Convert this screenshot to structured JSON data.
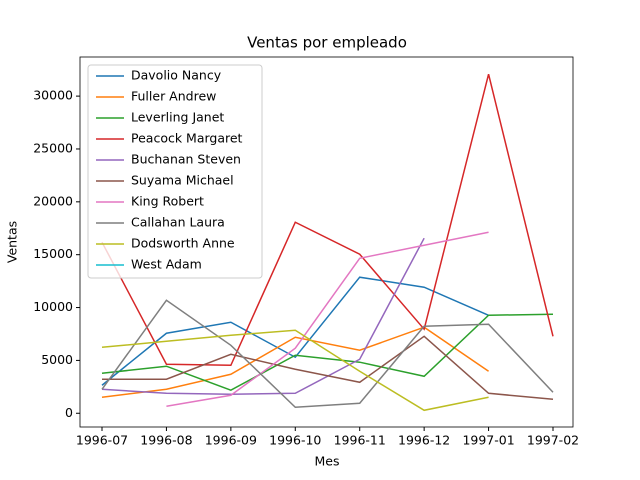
{
  "chart_data": {
    "type": "line",
    "title": "Ventas por empleado",
    "x_label": "Mes",
    "y_label": "Ventas",
    "categories": [
      "1996-07",
      "1996-08",
      "1996-09",
      "1996-10",
      "1996-11",
      "1996-12",
      "1997-01",
      "1997-02"
    ],
    "series": [
      {
        "name": "Davolio Nancy",
        "color": "#1f77b4",
        "values": [
          2650,
          7570,
          8610,
          5300,
          12870,
          11920,
          9270,
          null
        ]
      },
      {
        "name": "Fuller Andrew",
        "color": "#ff7f0e",
        "values": [
          1510,
          2270,
          3690,
          7190,
          5960,
          8140,
          3970,
          null
        ]
      },
      {
        "name": "Leverling Janet",
        "color": "#2ca02c",
        "values": [
          3780,
          4450,
          2180,
          5490,
          4830,
          3500,
          9270,
          9370
        ]
      },
      {
        "name": "Peacock Margaret",
        "color": "#d62728",
        "values": [
          16180,
          4640,
          4540,
          18070,
          15040,
          7950,
          32070,
          7280
        ]
      },
      {
        "name": "Buchanan Steven",
        "color": "#9467bd",
        "values": [
          2270,
          1890,
          1800,
          1890,
          5110,
          16560,
          null,
          null
        ]
      },
      {
        "name": "Suyama Michael",
        "color": "#8c564b",
        "values": [
          3220,
          3220,
          5580,
          4160,
          2930,
          7280,
          1890,
          1320
        ]
      },
      {
        "name": "King Robert",
        "color": "#e377c2",
        "values": [
          null,
          660,
          1700,
          6150,
          14660,
          15890,
          17120,
          null
        ]
      },
      {
        "name": "Callahan Laura",
        "color": "#7f7f7f",
        "values": [
          2270,
          10690,
          6430,
          570,
          950,
          8230,
          8420,
          1990
        ]
      },
      {
        "name": "Dodsworth Anne",
        "color": "#bcbd22",
        "values": [
          6240,
          6810,
          7380,
          7850,
          3970,
          280,
          1510,
          null
        ]
      },
      {
        "name": "West Adam",
        "color": "#17becf",
        "values": [
          null,
          null,
          null,
          null,
          null,
          null,
          null,
          null
        ]
      }
    ],
    "ylim": [
      -1300,
      33700
    ],
    "yticks": [
      0,
      5000,
      10000,
      15000,
      20000,
      25000,
      30000
    ],
    "legend": "upper left"
  }
}
